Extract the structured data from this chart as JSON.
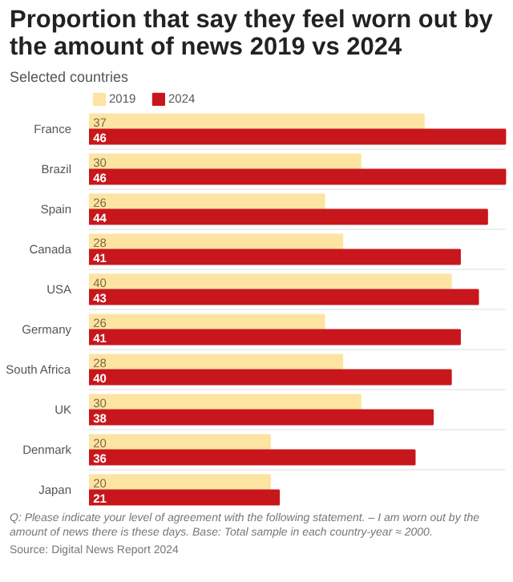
{
  "chart_data": {
    "type": "bar",
    "orientation": "horizontal",
    "title": "Proportion that say they feel worn out by the amount of news 2019 vs 2024",
    "subtitle": "Selected countries",
    "categories": [
      "France",
      "Brazil",
      "Spain",
      "Canada",
      "USA",
      "Germany",
      "South Africa",
      "UK",
      "Denmark",
      "Japan"
    ],
    "series": [
      {
        "name": "2019",
        "color": "#fde4a3",
        "values": [
          37,
          30,
          26,
          28,
          40,
          26,
          28,
          30,
          20,
          20
        ]
      },
      {
        "name": "2024",
        "color": "#c8171c",
        "values": [
          46,
          46,
          44,
          41,
          43,
          41,
          40,
          38,
          36,
          21
        ]
      }
    ],
    "data_labels": true,
    "legend": "top left",
    "grid": false,
    "annotations": [
      "Q: Please indicate your level of agreement with the following statement. – I am worn out by the amount of news there is these days. Base: Total sample in each country-year ≈ 2000.",
      "Source: Digital News Report 2024"
    ]
  }
}
